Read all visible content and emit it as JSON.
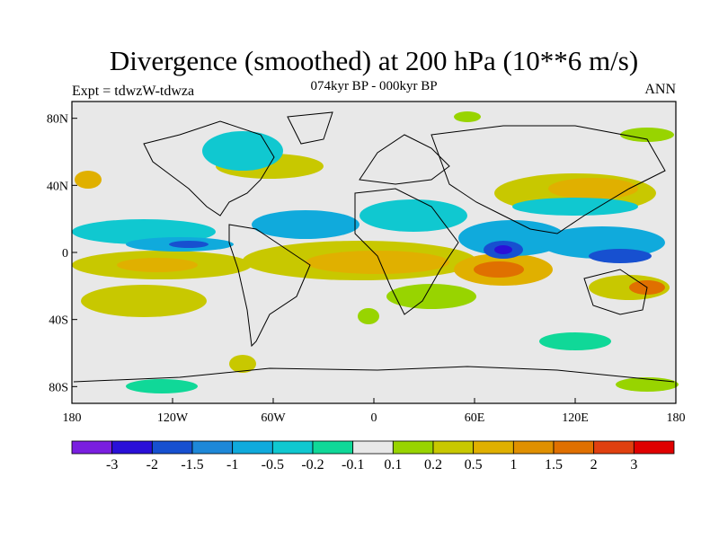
{
  "title": "Divergence (smoothed) at 200 hPa (10**6 m/s)",
  "subtitle": "074kyr BP - 000kyr BP",
  "left_label": "Expt = tdwzW-tdwza",
  "right_label": "ANN",
  "map": {
    "projection": "cylindrical-equidistant",
    "lon_range": [
      -180,
      180
    ],
    "lat_range": [
      -90,
      90
    ],
    "background_color": "#e8e8e8",
    "lat_ticks": [
      "80N",
      "40N",
      "0",
      "40S",
      "80S"
    ],
    "lon_ticks": [
      "180",
      "120W",
      "60W",
      "0",
      "60E",
      "120E",
      "180"
    ]
  },
  "colorbar": {
    "colors": [
      "#7a1fe0",
      "#2a10d8",
      "#1750d0",
      "#1e88d8",
      "#10aadc",
      "#10c8d0",
      "#10d898",
      "#e8e8e8",
      "#98d400",
      "#c8c800",
      "#e0b000",
      "#e09000",
      "#e07000",
      "#e04010",
      "#e00000"
    ],
    "labels": [
      "-3",
      "-2",
      "-1.5",
      "-1",
      "-0.5",
      "-0.2",
      "-0.1",
      "0.1",
      "0.2",
      "0.5",
      "1",
      "1.5",
      "2",
      "3"
    ]
  }
}
